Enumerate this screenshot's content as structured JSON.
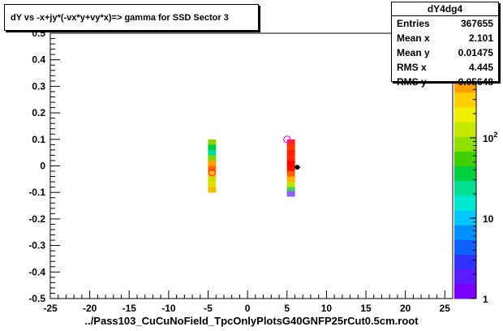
{
  "title": "dY vs -x+jy*(-vx*y+vy*x)=> gamma for SSD Sector 3",
  "stats": {
    "name": "dY4dg4",
    "rows": [
      {
        "label": "Entries",
        "value": "367655"
      },
      {
        "label": "Mean x",
        "value": "2.101"
      },
      {
        "label": "Mean y",
        "value": "0.01475"
      },
      {
        "label": "RMS x",
        "value": "4.445"
      },
      {
        "label": "RMS y",
        "value": "0.05648"
      }
    ]
  },
  "chart_data": {
    "type": "heatmap",
    "xlabel": "../Pass103_CuCuNoField_TpcOnlyPlotsG40GNFP25rCut0.5cm.root",
    "ylabel": "",
    "xlim": [
      -25,
      26
    ],
    "ylim": [
      -0.5,
      0.5
    ],
    "x_ticks": [
      -25,
      -20,
      -15,
      -10,
      -5,
      0,
      5,
      10,
      15,
      20,
      25
    ],
    "y_ticks": [
      -0.5,
      -0.4,
      -0.3,
      -0.2,
      -0.1,
      0,
      0.1,
      0.2,
      0.3,
      0.4,
      0.5
    ],
    "colorbar": {
      "scale": "log",
      "range": [
        1,
        2000
      ],
      "tick_labels": [
        "1",
        "10",
        "10^2",
        "10^3"
      ]
    },
    "grid": false,
    "bands": [
      {
        "x": -4.5,
        "y_min": -0.095,
        "y_max": 0.095,
        "cells": [
          {
            "y": 0.09,
            "color": "#8fd400"
          },
          {
            "y": 0.07,
            "color": "#00cc44"
          },
          {
            "y": 0.05,
            "color": "#00d9a0"
          },
          {
            "y": 0.03,
            "color": "#7fd800"
          },
          {
            "y": 0.01,
            "color": "#ffa000"
          },
          {
            "y": -0.01,
            "color": "#ff6a00"
          },
          {
            "y": -0.03,
            "color": "#ffbf00"
          },
          {
            "y": -0.05,
            "color": "#cfe000"
          },
          {
            "y": -0.07,
            "color": "#e0e000"
          },
          {
            "y": -0.09,
            "color": "#f0c000"
          }
        ]
      },
      {
        "x": 5.5,
        "y_min": -0.11,
        "y_max": 0.1,
        "cells": [
          {
            "y": 0.09,
            "color": "#ff2020"
          },
          {
            "y": 0.07,
            "color": "#ff3a00"
          },
          {
            "y": 0.05,
            "color": "#ff1a00"
          },
          {
            "y": 0.03,
            "color": "#ff2a00"
          },
          {
            "y": 0.01,
            "color": "#ff0000"
          },
          {
            "y": -0.01,
            "color": "#ff1000"
          },
          {
            "y": -0.03,
            "color": "#ff6000"
          },
          {
            "y": -0.05,
            "color": "#ffb000"
          },
          {
            "y": -0.07,
            "color": "#c0e000"
          },
          {
            "y": -0.09,
            "color": "#40d060"
          },
          {
            "y": -0.105,
            "color": "#9060ff"
          }
        ]
      }
    ],
    "markers": [
      {
        "x": -4.5,
        "y": -0.025,
        "shape": "open-circle",
        "color": "#ff3030"
      },
      {
        "x": 5.0,
        "y": 0.1,
        "shape": "open-circle",
        "color": "#ff00ff"
      },
      {
        "x": 6.3,
        "y": -0.005,
        "shape": "filled-circle",
        "color": "#000000"
      }
    ]
  }
}
